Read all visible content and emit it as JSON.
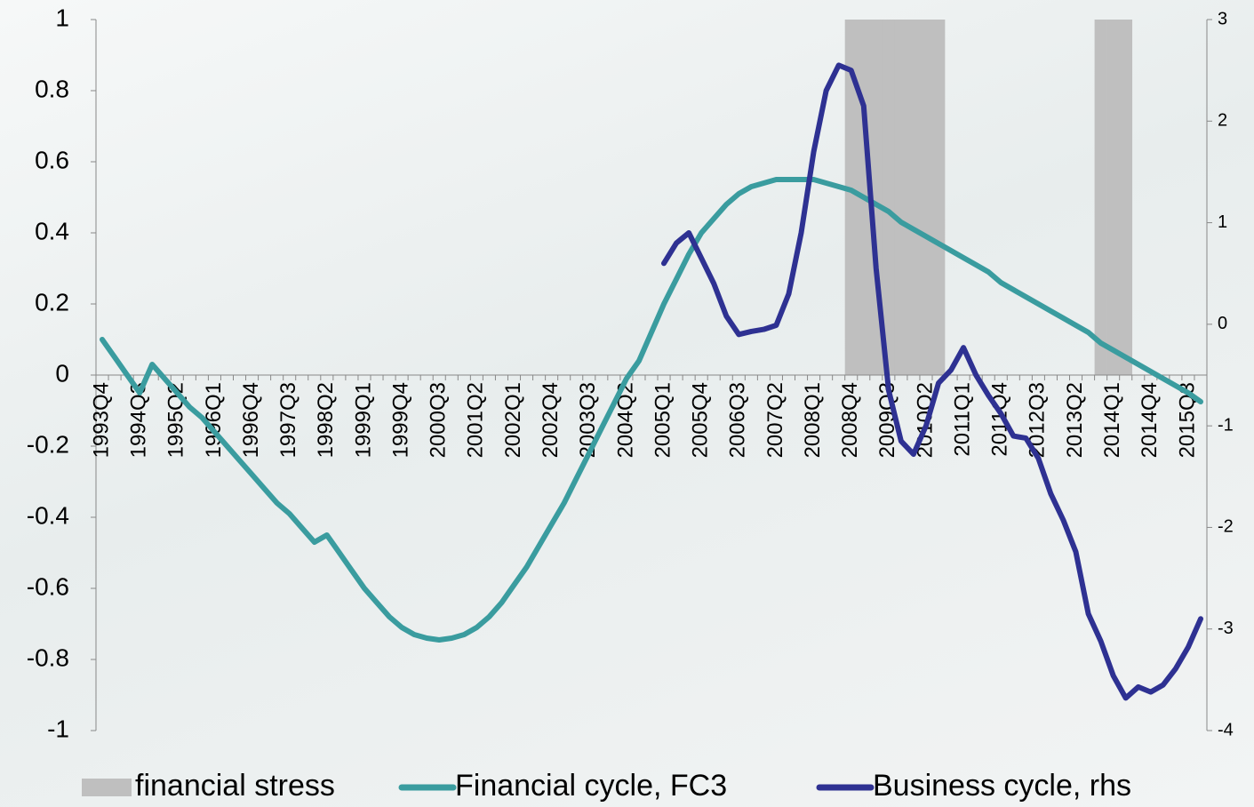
{
  "chart_data": {
    "type": "line",
    "categories": [
      "1993Q4",
      null,
      null,
      "1994Q3",
      null,
      null,
      "1995Q2",
      null,
      null,
      "1996Q1",
      null,
      null,
      "1996Q4",
      null,
      null,
      "1997Q3",
      null,
      null,
      "1998Q2",
      null,
      null,
      "1999Q1",
      null,
      null,
      "1999Q4",
      null,
      null,
      "2000Q3",
      null,
      null,
      "2001Q2",
      null,
      null,
      "2002Q1",
      null,
      null,
      "2002Q4",
      null,
      null,
      "2003Q3",
      null,
      null,
      "2004Q2",
      null,
      null,
      "2005Q1",
      null,
      null,
      "2005Q4",
      null,
      null,
      "2006Q3",
      null,
      null,
      "2007Q2",
      null,
      null,
      "2008Q1",
      null,
      null,
      "2008Q4",
      null,
      null,
      "2009Q3",
      null,
      null,
      "2010Q2",
      null,
      null,
      "2011Q1",
      null,
      null,
      "2011Q4",
      null,
      null,
      "2012Q3",
      null,
      null,
      "2013Q2",
      null,
      null,
      "2014Q1",
      null,
      null,
      "2014Q4",
      null,
      null,
      "2015Q3",
      null
    ],
    "series": [
      {
        "name": "financial stress",
        "type": "bar",
        "color": "#bfbfbf",
        "values": [
          0,
          0,
          0,
          0,
          0,
          0,
          0,
          0,
          0,
          0,
          0,
          0,
          0,
          0,
          0,
          0,
          0,
          0,
          0,
          0,
          0,
          0,
          0,
          0,
          0,
          0,
          0,
          0,
          0,
          0,
          0,
          0,
          0,
          0,
          0,
          0,
          0,
          0,
          0,
          0,
          0,
          0,
          0,
          0,
          0,
          0,
          0,
          0,
          0,
          0,
          0,
          0,
          0,
          0,
          0,
          0,
          0,
          0,
          0,
          0,
          1,
          1,
          1,
          1,
          1,
          1,
          1,
          1,
          0,
          0,
          0,
          0,
          0,
          0,
          0,
          0,
          0,
          0,
          0,
          0,
          1,
          1,
          1,
          0,
          0,
          0,
          0,
          0,
          0
        ]
      },
      {
        "name": "Financial cycle, FC3",
        "type": "line",
        "color": "#3a9c9f",
        "values": [
          0.1,
          0.05,
          0,
          -0.05,
          0.03,
          -0.01,
          -0.05,
          -0.09,
          -0.12,
          -0.16,
          -0.2,
          -0.24,
          -0.28,
          -0.32,
          -0.36,
          -0.39,
          -0.43,
          -0.47,
          -0.45,
          -0.5,
          -0.55,
          -0.6,
          -0.64,
          -0.68,
          -0.71,
          -0.73,
          -0.74,
          -0.745,
          -0.74,
          -0.73,
          -0.71,
          -0.68,
          -0.64,
          -0.59,
          -0.54,
          -0.48,
          -0.42,
          -0.36,
          -0.29,
          -0.22,
          -0.15,
          -0.08,
          -0.01,
          0.04,
          0.12,
          0.2,
          0.27,
          0.34,
          0.4,
          0.44,
          0.48,
          0.51,
          0.53,
          0.54,
          0.55,
          0.55,
          0.55,
          0.55,
          0.54,
          0.53,
          0.52,
          0.5,
          0.48,
          0.46,
          0.43,
          0.41,
          0.39,
          0.37,
          0.35,
          0.33,
          0.31,
          0.29,
          0.26,
          0.24,
          0.22,
          0.2,
          0.18,
          0.16,
          0.14,
          0.12,
          0.09,
          0.07,
          0.05,
          0.03,
          0.01,
          -0.01,
          -0.03,
          -0.05,
          -0.075
        ]
      },
      {
        "name": "Business cycle, rhs",
        "type": "line",
        "axis": "y2",
        "color": "#2e3192",
        "values": [
          null,
          null,
          null,
          null,
          null,
          null,
          null,
          null,
          null,
          null,
          null,
          null,
          null,
          null,
          null,
          null,
          null,
          null,
          null,
          null,
          null,
          null,
          null,
          null,
          null,
          null,
          null,
          null,
          null,
          null,
          null,
          null,
          null,
          null,
          null,
          null,
          null,
          null,
          null,
          null,
          null,
          null,
          null,
          null,
          null,
          0.6,
          0.8,
          0.9,
          0.65,
          0.4,
          0.08,
          -0.1,
          -0.07,
          -0.05,
          -0.01,
          0.3,
          0.9,
          1.7,
          2.3,
          2.55,
          2.5,
          2.15,
          0.55,
          -0.65,
          -1.15,
          -1.28,
          -1,
          -0.58,
          -0.45,
          -0.23,
          -0.5,
          -0.7,
          -0.88,
          -1.1,
          -1.12,
          -1.32,
          -1.67,
          -1.93,
          -2.24,
          -2.85,
          -3.12,
          -3.46,
          -3.68,
          -3.57,
          -3.62,
          -3.55,
          -3.39,
          -3.18,
          -2.9
        ]
      }
    ],
    "ylim": [
      -1,
      1
    ],
    "yticks": [
      -1,
      -0.8,
      -0.6,
      -0.4,
      -0.2,
      0,
      0.2,
      0.4,
      0.6,
      0.8,
      1
    ],
    "y2lim": [
      -4,
      3
    ],
    "y2ticks": [
      -4,
      -3,
      -2,
      -1,
      0,
      1,
      2,
      3
    ],
    "legend": "bottom"
  }
}
